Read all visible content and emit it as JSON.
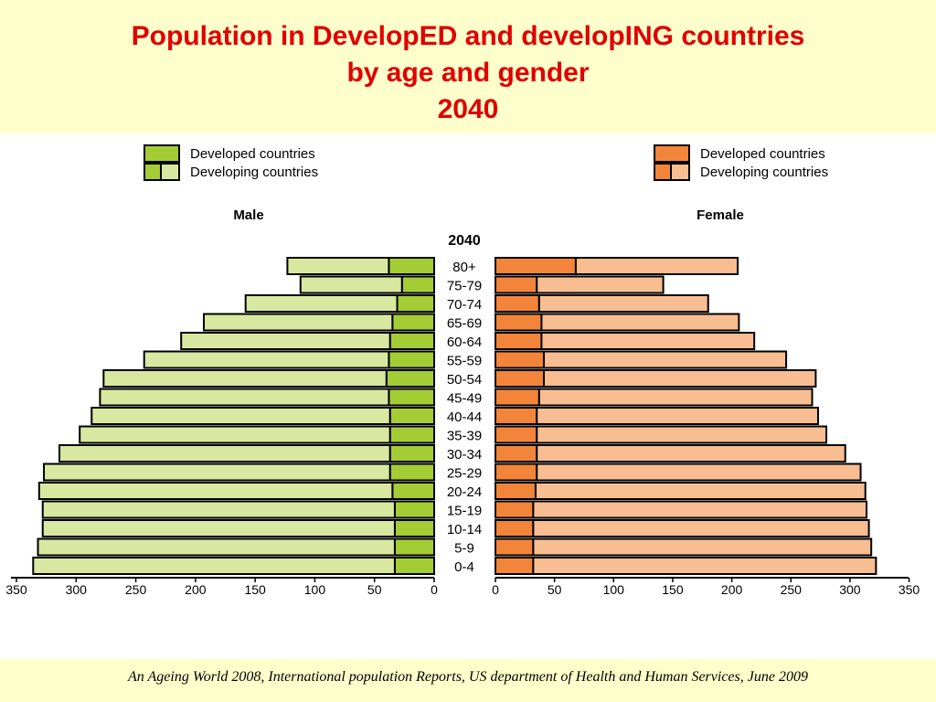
{
  "slide": {
    "title_line1": "Population in DevelopED and developING countries",
    "title_line2": "by age and gender",
    "title_line3": "2040",
    "source": "An Ageing World 2008, International population Reports, US department of Health and Human Services, June  2009"
  },
  "colors": {
    "male_developed": "#a4cc35",
    "male_developing": "#d8e8a0",
    "female_developed": "#f2853a",
    "female_developing": "#f9bd92",
    "title": "#e00000",
    "band": "#ffffcc"
  },
  "chart_data": {
    "type": "bar",
    "orientation": "horizontal",
    "layout": "population-pyramid",
    "year_label": "2040",
    "categories": [
      "80+",
      "75-79",
      "70-74",
      "65-69",
      "60-64",
      "55-59",
      "50-54",
      "45-49",
      "40-44",
      "35-39",
      "30-34",
      "25-29",
      "20-24",
      "15-19",
      "10-14",
      "5-9",
      "0-4"
    ],
    "male": {
      "panel_label": "Male",
      "legend": [
        "Developed countries",
        "Developing countries"
      ],
      "series": [
        {
          "name": "Developed countries",
          "values": [
            38,
            27,
            31,
            35,
            37,
            38,
            40,
            38,
            37,
            37,
            37,
            37,
            35,
            33,
            33,
            33,
            33
          ]
        },
        {
          "name": "Developing countries",
          "values": [
            85,
            85,
            127,
            158,
            175,
            205,
            237,
            242,
            250,
            260,
            277,
            290,
            296,
            295,
            295,
            299,
            303
          ]
        }
      ],
      "xlim": [
        350,
        0
      ],
      "ticks": [
        "350",
        "300",
        "250",
        "200",
        "150",
        "100",
        "50",
        "0"
      ]
    },
    "female": {
      "panel_label": "Female",
      "legend": [
        "Developed countries",
        "Developing countries"
      ],
      "series": [
        {
          "name": "Developed countries",
          "values": [
            68,
            35,
            37,
            39,
            39,
            41,
            41,
            37,
            35,
            35,
            35,
            35,
            34,
            32,
            32,
            32,
            32
          ]
        },
        {
          "name": "Developing countries",
          "values": [
            137,
            107,
            143,
            167,
            180,
            205,
            230,
            231,
            238,
            245,
            261,
            274,
            279,
            282,
            284,
            286,
            290
          ]
        }
      ],
      "xlim": [
        0,
        350
      ],
      "ticks": [
        "0",
        "50",
        "100",
        "150",
        "200",
        "250",
        "300",
        "350"
      ]
    }
  }
}
